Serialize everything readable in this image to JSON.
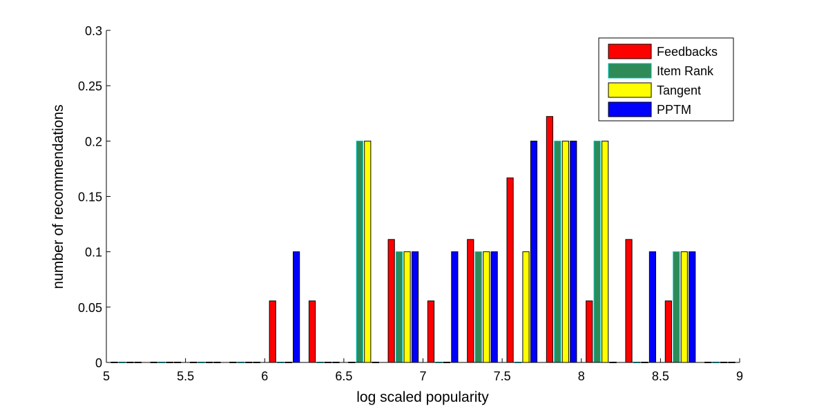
{
  "chart_data": {
    "type": "bar",
    "xlabel": "log scaled popularity",
    "ylabel": "number of recommendations",
    "xlim": [
      5,
      9
    ],
    "ylim": [
      0,
      0.3
    ],
    "xticks": [
      "5",
      "5.5",
      "6",
      "6.5",
      "7",
      "7.5",
      "8",
      "8.5",
      "9"
    ],
    "yticks": [
      "0",
      "0.05",
      "0.1",
      "0.15",
      "0.2",
      "0.25",
      "0.3"
    ],
    "bin_centers": [
      5.125,
      5.375,
      5.625,
      5.875,
      6.125,
      6.375,
      6.625,
      6.875,
      7.125,
      7.375,
      7.625,
      7.875,
      8.125,
      8.375,
      8.625,
      8.875
    ],
    "series": [
      {
        "name": "Feedbacks",
        "color": "#ff0000",
        "values": [
          0,
          0,
          0,
          0,
          0.0556,
          0.0556,
          0,
          0.1111,
          0.0556,
          0.1111,
          0.1667,
          0.2222,
          0.0556,
          0.1111,
          0.0556,
          0
        ]
      },
      {
        "name": "Item Rank",
        "color": "#2e8b57",
        "edge": "#00bfbf",
        "values": [
          0,
          0,
          0,
          0,
          0,
          0,
          0.2,
          0.1,
          0,
          0.1,
          0,
          0.2,
          0.2,
          0,
          0.1,
          0
        ]
      },
      {
        "name": "Tangent",
        "color": "#ffff00",
        "values": [
          0,
          0,
          0,
          0,
          0,
          0,
          0.2,
          0.1,
          0,
          0.1,
          0.1,
          0.2,
          0.2,
          0,
          0.1,
          0
        ]
      },
      {
        "name": "PPTM",
        "color": "#0000ff",
        "values": [
          0,
          0,
          0,
          0,
          0.1,
          0,
          0,
          0.1,
          0.1,
          0.1,
          0.2,
          0.2,
          0,
          0.1,
          0.1,
          0
        ]
      }
    ],
    "legend_position": "top-right",
    "grid": false
  }
}
